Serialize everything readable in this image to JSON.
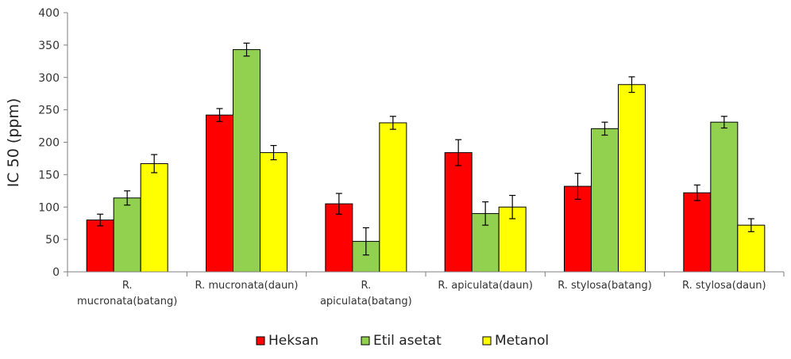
{
  "chart_data": {
    "type": "bar",
    "title": "",
    "xlabel": "",
    "ylabel": "IC 50 (ppm)",
    "ylim": [
      0,
      400
    ],
    "yticks": [
      0,
      50,
      100,
      150,
      200,
      250,
      300,
      350,
      400
    ],
    "grid": false,
    "legend_position": "bottom",
    "categories": [
      [
        "R.",
        "mucronata(batang)"
      ],
      [
        "R. mucronata(daun)"
      ],
      [
        "R.",
        "apiculata(batang)"
      ],
      [
        "R. apiculata(daun)"
      ],
      [
        "R. stylosa(batang)"
      ],
      [
        "R. stylosa(daun)"
      ]
    ],
    "series": [
      {
        "name": "Heksan",
        "color": "#ff0000",
        "values": [
          80,
          242,
          105,
          184,
          132,
          122
        ],
        "errors": [
          9,
          10,
          16,
          20,
          20,
          12
        ]
      },
      {
        "name": "Etil asetat",
        "color": "#92d050",
        "values": [
          114,
          343,
          47,
          90,
          221,
          231
        ],
        "errors": [
          11,
          10,
          21,
          18,
          10,
          9
        ]
      },
      {
        "name": "Metanol",
        "color": "#ffff00",
        "values": [
          167,
          184,
          230,
          100,
          289,
          72
        ],
        "errors": [
          14,
          11,
          10,
          18,
          12,
          10
        ]
      }
    ]
  }
}
